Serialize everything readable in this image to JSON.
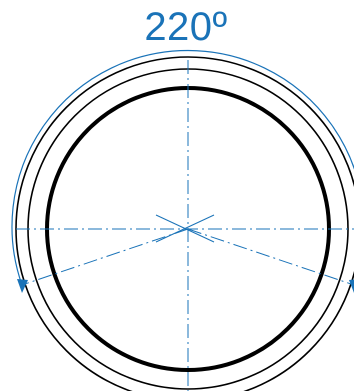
{
  "diagram": {
    "angle_label": "220º",
    "colors": {
      "accent": "#1a73b8",
      "outline": "#000000",
      "background": "#ffffff"
    }
  }
}
